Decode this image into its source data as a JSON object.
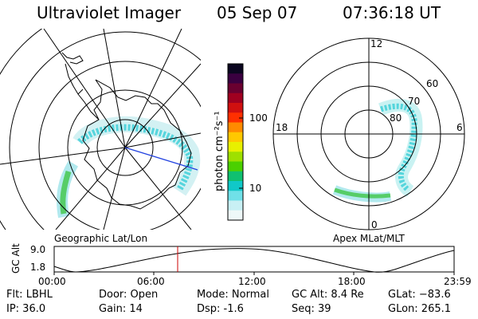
{
  "header": {
    "instrument": "Ultraviolet Imager",
    "date": "05 Sep 07",
    "time": "07:36:18 UT"
  },
  "left_panel": {
    "caption": "Geographic Lat/Lon"
  },
  "right_panel": {
    "caption": "Apex MLat/MLT",
    "mlt_labels": [
      "12",
      "18",
      "6",
      "0"
    ],
    "lat_labels": [
      "60",
      "70",
      "80"
    ]
  },
  "colorbar": {
    "unit_label": "photon cm⁻²s⁻¹",
    "ticks": [
      "100",
      "10"
    ],
    "colors": [
      "#0b0620",
      "#3a0040",
      "#6a0030",
      "#a00020",
      "#d01010",
      "#ff3000",
      "#ff8a00",
      "#ffc800",
      "#e8f000",
      "#9ee000",
      "#4bd000",
      "#10c070",
      "#10c8c8",
      "#70e0e8",
      "#c8f0f4",
      "#eef8f8"
    ]
  },
  "timeline": {
    "y_label": "GC Alt",
    "y_ticks": [
      "9.0",
      "1.8"
    ],
    "x_ticks": [
      "00:00",
      "06:00",
      "12:00",
      "18:00",
      "23:59"
    ],
    "marker_time": "07:36",
    "marker_color": "#cc0000"
  },
  "info": {
    "flt": "Flt: LBHL",
    "ip": "IP: 36.0",
    "door": "Door: Open",
    "gain": "Gain: 14",
    "mode": "Mode: Normal",
    "dsp": "Dsp:    -1.6",
    "gcalt": "GC Alt: 8.4 Re",
    "seq": "Seq: 39",
    "glat": "GLat: −83.6",
    "glon": "GLon: 265.1"
  },
  "colors": {
    "aurora_cyan": "#3fd0d8",
    "aurora_green": "#46c850",
    "track_blue": "#2040e0"
  }
}
